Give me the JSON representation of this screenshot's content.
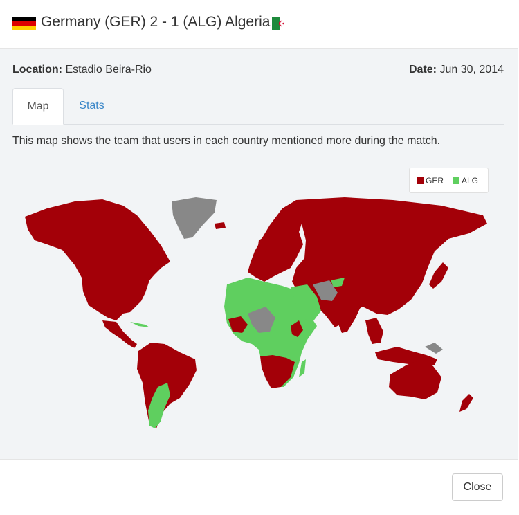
{
  "header": {
    "title": "Germany (GER) 2 - 1 (ALG) Algeria"
  },
  "meta": {
    "location_label": "Location:",
    "location_value": "Estadio Beira-Rio",
    "date_label": "Date:",
    "date_value": "Jun 30, 2014"
  },
  "tabs": [
    {
      "label": "Map",
      "active": true
    },
    {
      "label": "Stats",
      "active": false
    }
  ],
  "description": "This map shows the team that users in each country mentioned more during the match.",
  "legend": [
    {
      "label": "GER",
      "color": "#a30008"
    },
    {
      "label": "ALG",
      "color": "#5fcf5f"
    }
  ],
  "colors": {
    "ger": "#a30008",
    "alg": "#5fcf5f",
    "no_data": "#888888"
  },
  "footer": {
    "close_label": "Close"
  }
}
